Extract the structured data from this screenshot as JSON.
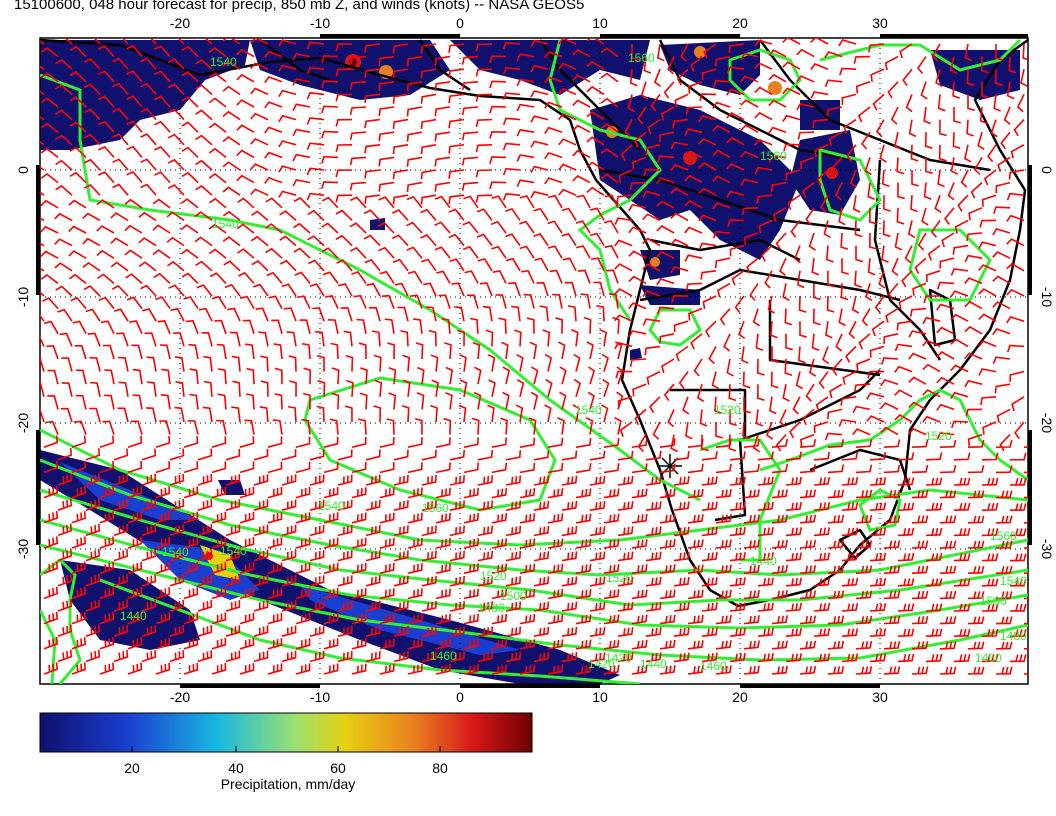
{
  "title": "15100600, 048 hour forecast for precip, 850 mb Z, and winds (knots) -- NASA GEOS5",
  "axes": {
    "x_ticks_top": [
      "-20",
      "-10",
      "0",
      "10",
      "20",
      "30"
    ],
    "x_ticks_bottom": [
      "-20",
      "-10",
      "0",
      "10",
      "20",
      "30"
    ],
    "y_ticks_left": [
      "0",
      "-10",
      "-20",
      "-30"
    ],
    "y_ticks_right": [
      "0",
      "-10",
      "-20",
      "-30"
    ],
    "lon_range": [
      -30,
      41
    ],
    "lat_range": [
      8,
      -39
    ]
  },
  "contour_labels": [
    "1540",
    "1560",
    "1540",
    "1560",
    "1540",
    "1520",
    "1540",
    "1560",
    "1480",
    "1500",
    "1520",
    "1460",
    "1540",
    "1520",
    "1480",
    "1460",
    "1540",
    "1560",
    "1540",
    "1420",
    "1440",
    "1440",
    "1460",
    "1500",
    "1420",
    "1440",
    "1520"
  ],
  "colorbar": {
    "label": "Precipitation, mm/day",
    "ticks": [
      "20",
      "40",
      "60",
      "80"
    ],
    "colors": [
      "#10106e",
      "#1a3fd0",
      "#18b8e0",
      "#9ce070",
      "#e6d010",
      "#e88020",
      "#d81818",
      "#6e0000"
    ]
  },
  "colors": {
    "contour": "#33ee33",
    "wind_barb": "#ff0000",
    "coastline": "#000000",
    "precip_low": "#10106e"
  }
}
